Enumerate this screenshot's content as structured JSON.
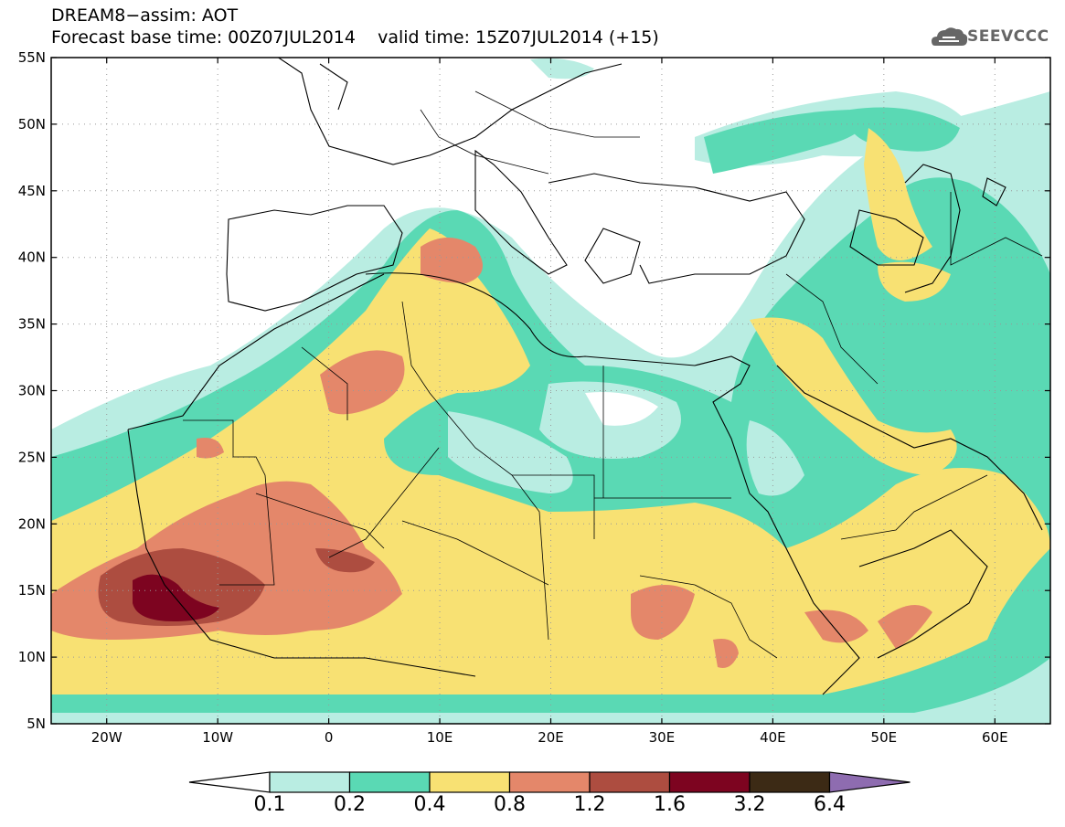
{
  "title": {
    "line1": "DREAM8−assim: AOT",
    "line2": "Forecast base time: 00Z07JUL2014    valid time: 15Z07JUL2014 (+15)"
  },
  "logo": {
    "text": "SEEVCCC",
    "icon": "cloud-logo-icon"
  },
  "map": {
    "lon_range": [
      -25,
      65
    ],
    "lat_range": [
      5,
      55
    ],
    "lon_ticks": [
      {
        "value": -20,
        "label": "20W"
      },
      {
        "value": -10,
        "label": "10W"
      },
      {
        "value": 0,
        "label": "0"
      },
      {
        "value": 10,
        "label": "10E"
      },
      {
        "value": 20,
        "label": "20E"
      },
      {
        "value": 30,
        "label": "30E"
      },
      {
        "value": 40,
        "label": "40E"
      },
      {
        "value": 50,
        "label": "50E"
      },
      {
        "value": 60,
        "label": "60E"
      }
    ],
    "lat_ticks": [
      {
        "value": 55,
        "label": "55N"
      },
      {
        "value": 50,
        "label": "50N"
      },
      {
        "value": 45,
        "label": "45N"
      },
      {
        "value": 40,
        "label": "40N"
      },
      {
        "value": 35,
        "label": "35N"
      },
      {
        "value": 30,
        "label": "30N"
      },
      {
        "value": 25,
        "label": "25N"
      },
      {
        "value": 20,
        "label": "20N"
      },
      {
        "value": 15,
        "label": "15N"
      },
      {
        "value": 10,
        "label": "10N"
      },
      {
        "value": 5,
        "label": "5N"
      }
    ],
    "grid": true,
    "variable": "AOT"
  },
  "colorbar": {
    "levels": [
      "0.1",
      "0.2",
      "0.4",
      "0.8",
      "1.2",
      "1.6",
      "3.2",
      "6.4"
    ],
    "colors": [
      "#ffffff",
      "#b9ede2",
      "#5ad9b4",
      "#f8e173",
      "#e4876a",
      "#ad4d40",
      "#7d0420",
      "#3c2a15",
      "#8e6cb0"
    ]
  }
}
